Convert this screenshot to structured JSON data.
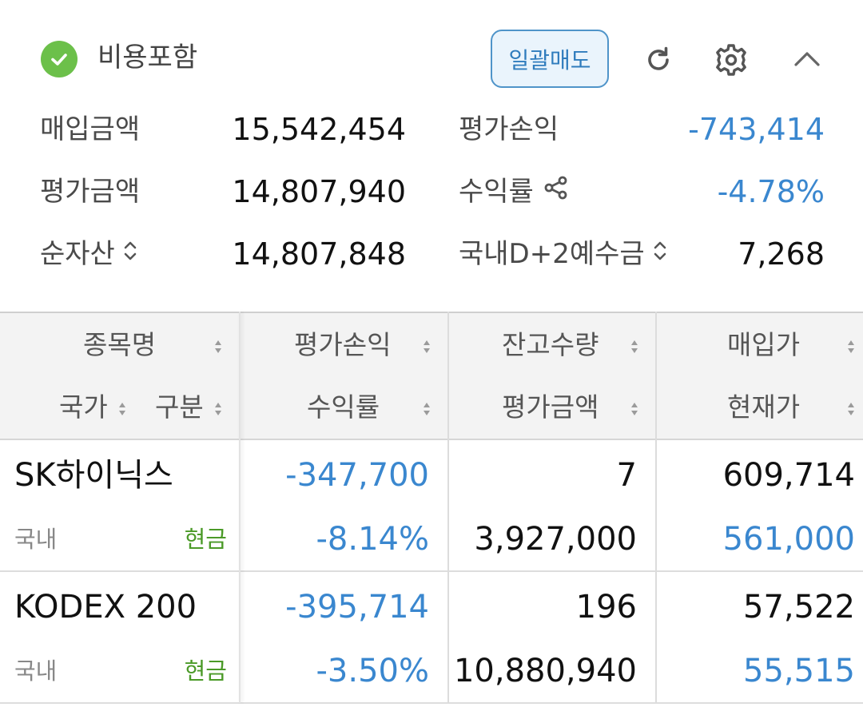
{
  "header": {
    "include_fees_label": "비용포함",
    "include_fees_checked": true,
    "bulk_sell_label": "일괄매도",
    "icons": {
      "refresh": "refresh-icon",
      "settings": "gear-icon",
      "collapse": "chevron-up-icon"
    }
  },
  "summary": {
    "purchase_amount_label": "매입금액",
    "purchase_amount": "15,542,454",
    "eval_pl_label": "평가손익",
    "eval_pl": "-743,414",
    "eval_amount_label": "평가금액",
    "eval_amount": "14,807,940",
    "return_rate_label": "수익률",
    "return_rate": "-4.78%",
    "net_assets_label": "순자산",
    "net_assets": "14,807,848",
    "deposit_label": "국내D+2예수금",
    "deposit": "7,268"
  },
  "table": {
    "headers": {
      "stock_name": "종목명",
      "country": "국가",
      "type": "구분",
      "eval_pl": "평가손익",
      "return_rate": "수익률",
      "quantity": "잔고수량",
      "eval_amount": "평가금액",
      "purchase_price": "매입가",
      "current_price": "현재가"
    },
    "rows": [
      {
        "name": "SK하이닉스",
        "country": "국내",
        "type": "현금",
        "eval_pl": "-347,700",
        "return_rate": "-8.14%",
        "quantity": "7",
        "eval_amount": "3,927,000",
        "purchase_price": "609,714",
        "current_price": "561,000"
      },
      {
        "name": "KODEX 200",
        "country": "국내",
        "type": "현금",
        "eval_pl": "-395,714",
        "return_rate": "-3.50%",
        "quantity": "196",
        "eval_amount": "10,880,940",
        "purchase_price": "57,522",
        "current_price": "55,515"
      }
    ]
  },
  "colors": {
    "negative_blue": "#3a87cf",
    "cash_green": "#4b9a28",
    "check_green": "#6cc04a",
    "button_border": "#4f94c9"
  }
}
